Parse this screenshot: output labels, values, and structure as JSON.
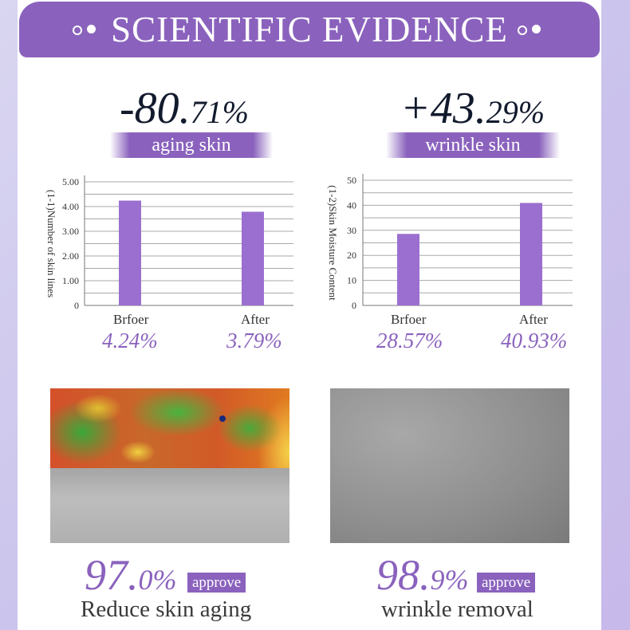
{
  "header": {
    "title": "SCIENTIFIC EVIDENCE"
  },
  "stats": [
    {
      "int": "-80.",
      "dec": "71%",
      "label": "aging skin"
    },
    {
      "int": "+43.",
      "dec": "29%",
      "label": "wrinkle skin"
    }
  ],
  "chart_data": [
    {
      "type": "bar",
      "categories": [
        "Brfoer",
        "After"
      ],
      "values": [
        4.24,
        3.79
      ],
      "value_labels": [
        "4.24%",
        "3.79%"
      ],
      "ylabel": "(1-1)Number of skin lines",
      "ylim": [
        0,
        5
      ],
      "yticks": [
        "0",
        "1.00",
        "2.00",
        "3.00",
        "4.00",
        "5.00"
      ],
      "ytick_values": [
        0,
        1,
        2,
        3,
        4,
        5
      ],
      "grid": true,
      "bar_color": "#9b6fcf"
    },
    {
      "type": "bar",
      "categories": [
        "Brfoer",
        "After"
      ],
      "values": [
        28.57,
        40.93
      ],
      "value_labels": [
        "28.57%",
        "40.93%"
      ],
      "ylabel": "(1-2)Skin Moisture Content",
      "ylim": [
        0,
        50
      ],
      "yticks": [
        "0",
        "10",
        "20",
        "30",
        "40",
        "50"
      ],
      "ytick_values": [
        0,
        10,
        20,
        30,
        40,
        50
      ],
      "grid": true,
      "bar_color": "#9b6fcf"
    }
  ],
  "results": [
    {
      "int": "97.",
      "dec": "0%",
      "badge": "approve",
      "caption": "Reduce skin aging"
    },
    {
      "int": "98.",
      "dec": "9%",
      "badge": "approve",
      "caption": "wrinkle removal"
    }
  ],
  "colors": {
    "accent": "#8a62bd",
    "bar": "#9b6fcf",
    "dark_text": "#121a2d"
  }
}
